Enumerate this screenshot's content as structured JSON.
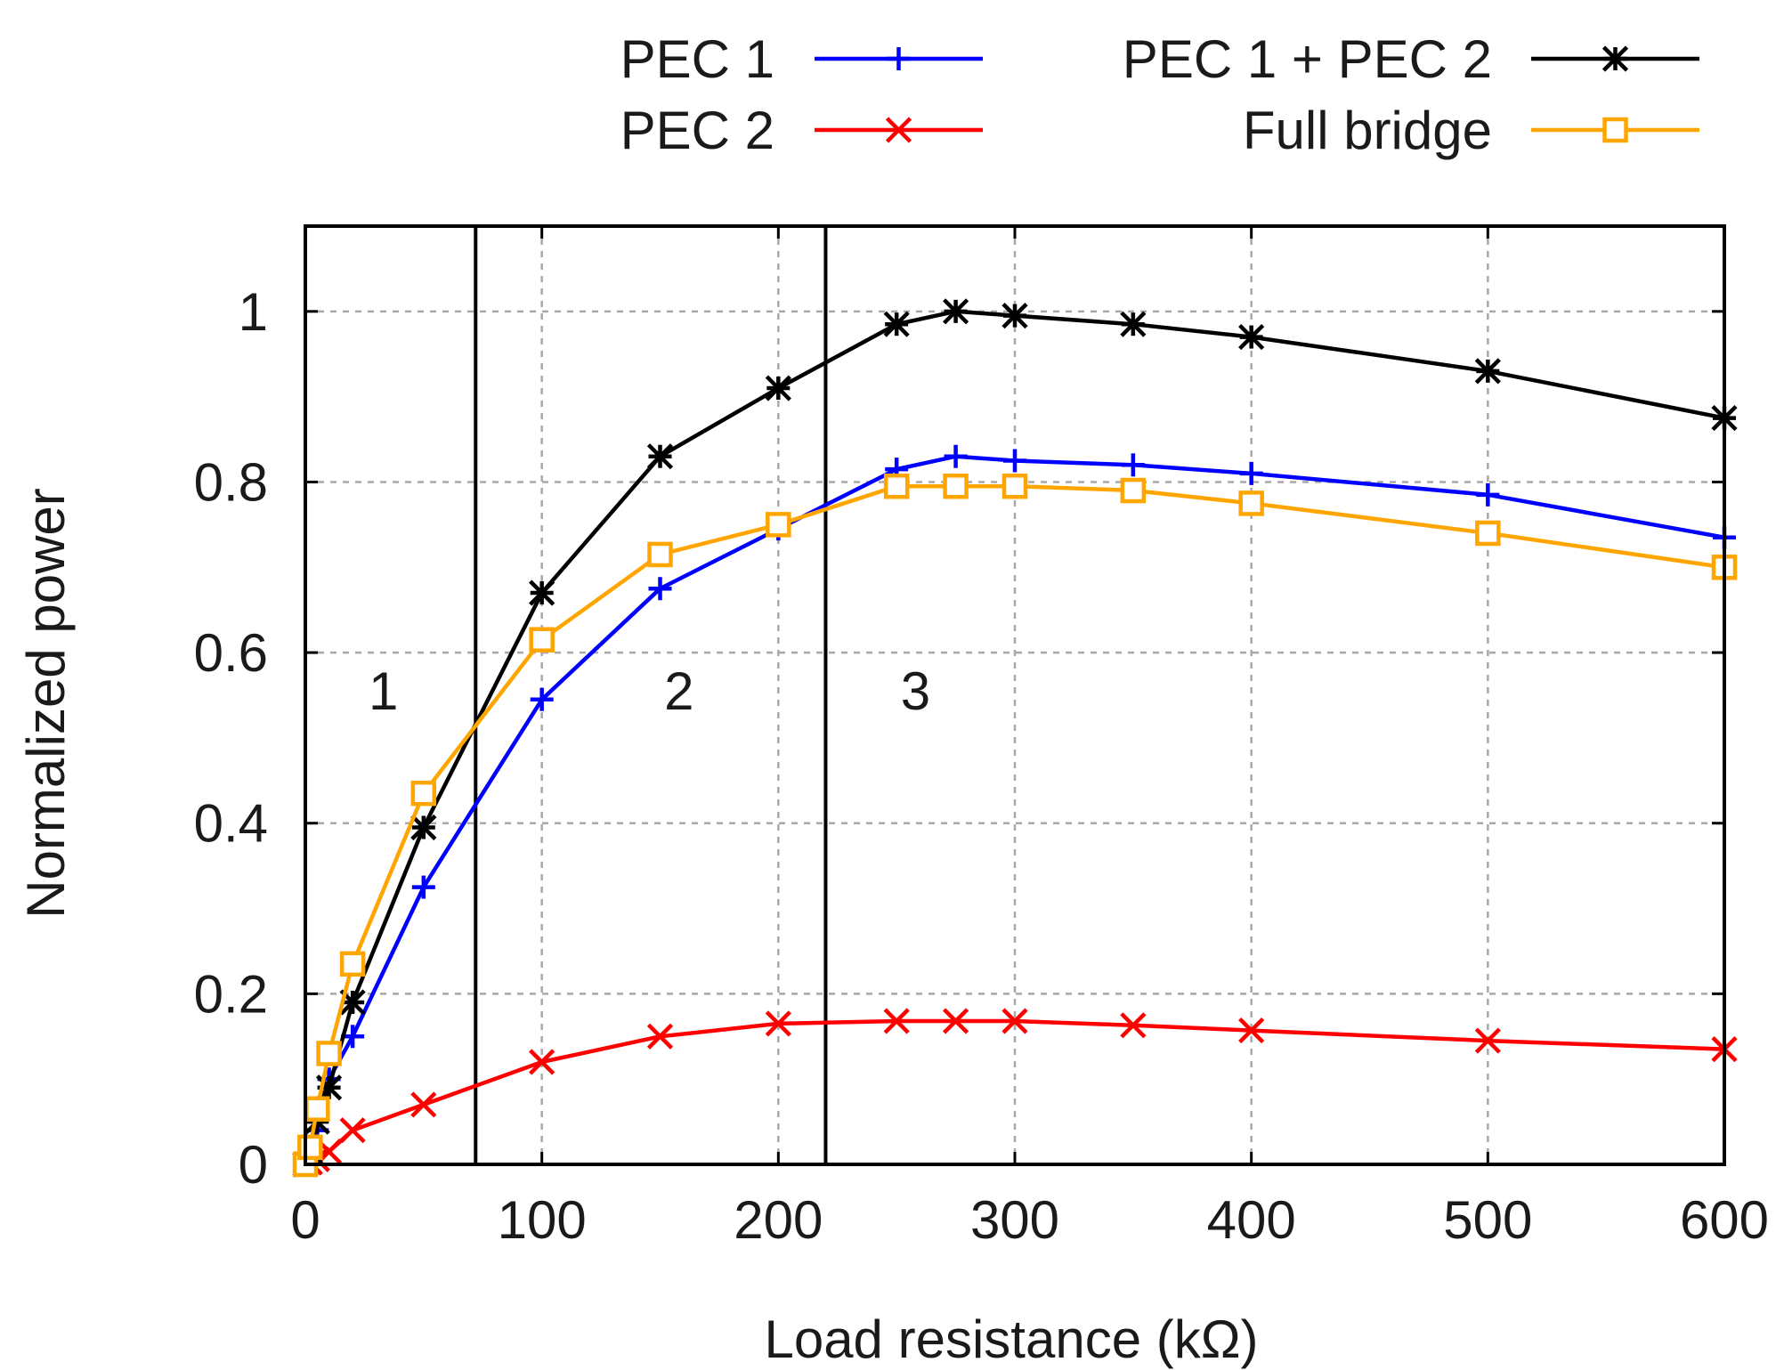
{
  "chart_data": {
    "type": "line",
    "xlabel": "Load resistance (kΩ)",
    "ylabel": "Normalized power",
    "xlim": [
      0,
      600
    ],
    "ylim": [
      0,
      1.1
    ],
    "xticks": [
      0,
      100,
      200,
      300,
      400,
      500,
      600
    ],
    "yticks": [
      0,
      0.2,
      0.4,
      0.6,
      0.8,
      1
    ],
    "xtick_labels": [
      "0",
      "100",
      "200",
      "300",
      "400",
      "500",
      "600"
    ],
    "ytick_labels": [
      "0",
      "0.2",
      "0.4",
      "0.6",
      "0.8",
      "1"
    ],
    "grid": true,
    "legend_position": "top",
    "dividers_x": [
      72,
      220
    ],
    "regions": [
      {
        "label": "1",
        "x": 33,
        "y": 0.555
      },
      {
        "label": "2",
        "x": 158,
        "y": 0.555
      },
      {
        "label": "3",
        "x": 258,
        "y": 0.555
      }
    ],
    "series": [
      {
        "name": "PEC 1",
        "color": "#0000ff",
        "marker": "plus",
        "x": [
          0,
          2,
          5,
          10,
          20,
          50,
          100,
          150,
          200,
          250,
          275,
          300,
          350,
          400,
          500,
          600
        ],
        "y": [
          0,
          0.01,
          0.04,
          0.1,
          0.15,
          0.325,
          0.545,
          0.675,
          0.745,
          0.815,
          0.83,
          0.825,
          0.82,
          0.81,
          0.785,
          0.735
        ]
      },
      {
        "name": "PEC 2",
        "color": "#ff0000",
        "marker": "cross",
        "x": [
          0,
          2,
          5,
          10,
          20,
          50,
          100,
          150,
          200,
          250,
          275,
          300,
          350,
          400,
          500,
          600
        ],
        "y": [
          0,
          0.002,
          0.006,
          0.015,
          0.04,
          0.07,
          0.12,
          0.15,
          0.165,
          0.168,
          0.168,
          0.168,
          0.163,
          0.157,
          0.145,
          0.135
        ]
      },
      {
        "name": "PEC 1 + PEC 2",
        "color": "#000000",
        "marker": "star",
        "x": [
          0,
          2,
          5,
          10,
          20,
          50,
          100,
          150,
          200,
          250,
          275,
          300,
          350,
          400,
          500,
          600
        ],
        "y": [
          0,
          0.015,
          0.05,
          0.09,
          0.19,
          0.395,
          0.67,
          0.83,
          0.91,
          0.985,
          1.0,
          0.995,
          0.985,
          0.97,
          0.93,
          0.875
        ]
      },
      {
        "name": "Full bridge",
        "color": "#ffa500",
        "marker": "square",
        "x": [
          0,
          2,
          5,
          10,
          20,
          50,
          100,
          150,
          200,
          250,
          275,
          300,
          350,
          400,
          500,
          600
        ],
        "y": [
          0,
          0.02,
          0.065,
          0.13,
          0.235,
          0.435,
          0.615,
          0.715,
          0.75,
          0.795,
          0.795,
          0.795,
          0.79,
          0.775,
          0.74,
          0.7
        ]
      }
    ]
  }
}
